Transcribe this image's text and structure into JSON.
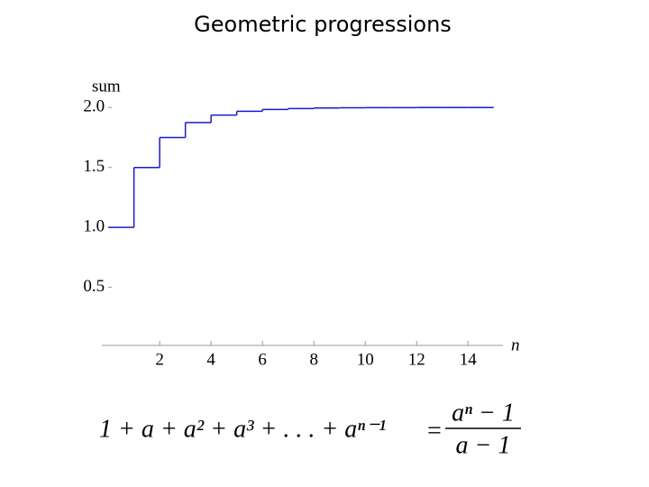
{
  "chart_data": {
    "type": "step",
    "title": "Geometric progressions",
    "x_label": "n",
    "y_label": "sum",
    "x": [
      0,
      1,
      2,
      3,
      4,
      5,
      6,
      7,
      8,
      9,
      10,
      11,
      12,
      13,
      14
    ],
    "values": [
      1,
      1.5,
      1.75,
      1.875,
      1.9375,
      1.9688,
      1.9844,
      1.9922,
      1.9961,
      1.998,
      1.999,
      1.9995,
      1.9998,
      1.9999,
      1.9999
    ],
    "color": "#1a1acc",
    "xlim": [
      -0.25,
      15.5
    ],
    "ylim": [
      0,
      2.1
    ],
    "xticks": [
      2,
      4,
      6,
      8,
      10,
      12,
      14
    ],
    "yticks": [
      {
        "value": 0.5,
        "label": "0.5"
      },
      {
        "value": 1,
        "label": "1.0"
      },
      {
        "value": 1.5,
        "label": "1.5"
      },
      {
        "value": 2,
        "label": "2.0"
      }
    ]
  },
  "formula": {
    "lhs": "1 + a + a² + a³ + . . . + aⁿ⁻¹",
    "equals": "=",
    "numerator": "aⁿ − 1",
    "denominator": "a − 1"
  }
}
